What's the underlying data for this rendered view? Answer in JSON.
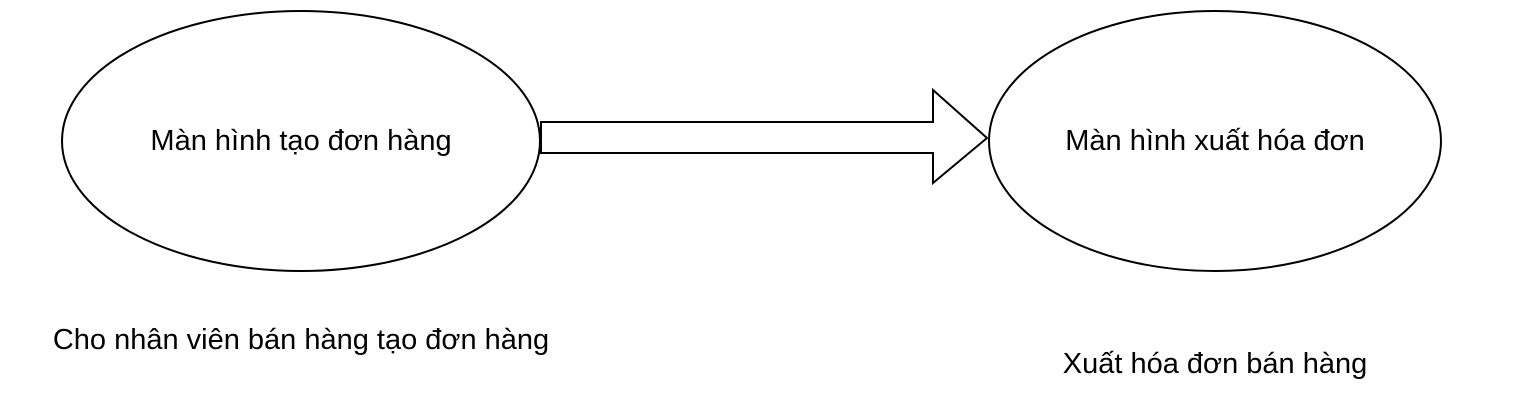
{
  "nodes": [
    {
      "id": "create-order-screen",
      "label": "Màn hình tạo đơn hàng"
    },
    {
      "id": "invoice-screen",
      "label": "Màn hình xuất hóa đơn"
    }
  ],
  "edges": [
    {
      "from": "create-order-screen",
      "to": "invoice-screen",
      "style": "hollow-block-arrow"
    }
  ],
  "captions": [
    {
      "for": "create-order-screen",
      "text": "Cho nhân viên bán hàng tạo đơn hàng"
    },
    {
      "for": "invoice-screen",
      "text": "Xuất hóa đơn bán hàng"
    }
  ],
  "colors": {
    "stroke": "#000000",
    "fill": "#ffffff",
    "text": "#000000"
  }
}
